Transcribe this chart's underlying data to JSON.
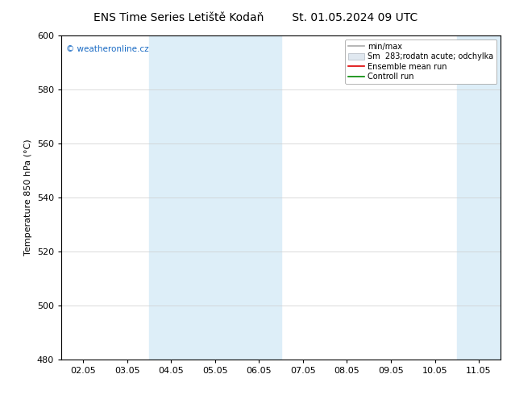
{
  "title_left": "ENS Time Series Letiště Kodaň",
  "title_right": "St. 01.05.2024 09 UTC",
  "ylabel": "Temperature 850 hPa (°C)",
  "ylim": [
    480,
    600
  ],
  "yticks": [
    480,
    500,
    520,
    540,
    560,
    580,
    600
  ],
  "xtick_labels": [
    "02.05",
    "03.05",
    "04.05",
    "05.05",
    "06.05",
    "07.05",
    "08.05",
    "09.05",
    "10.05",
    "11.05"
  ],
  "background_color": "#ffffff",
  "plot_bg_color": "#ffffff",
  "shaded_color": "#ddeef8",
  "watermark": "© weatheronline.cz",
  "grid_color": "#cccccc",
  "legend_min_max_color": "#aaaaaa",
  "legend_sm_color": "#cccccc",
  "legend_ensemble_color": "#dd0000",
  "legend_control_color": "#008800"
}
